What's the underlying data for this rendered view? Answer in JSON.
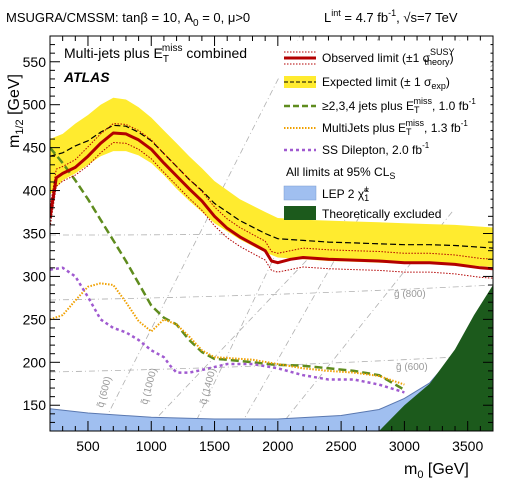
{
  "chart_data": {
    "type": "line",
    "header": {
      "model": "MSUGRA/CMSSM: tanβ = 10, A",
      "model_sub": "0",
      "model_tail": " = 0, μ>0",
      "lumi_main": "L",
      "lumi_sup": "int",
      "lumi_tail": " = 4.7 fb",
      "lumi_unit_sup": "-1",
      "lumi_energy": ", √s=7 TeV"
    },
    "panel_title": {
      "main": "Multi-jets plus E",
      "sub": "T",
      "sup": "miss",
      "tail": " combined"
    },
    "experiment": "ATLAS",
    "xlabel": {
      "main": "m",
      "sub": "0",
      "tail": " [GeV]"
    },
    "ylabel": {
      "main": "m",
      "sub": "1/2",
      "tail": " [GeV]"
    },
    "xlim": [
      200,
      3700
    ],
    "ylim": [
      120,
      580
    ],
    "xticks": [
      500,
      1000,
      1500,
      2000,
      2500,
      3000,
      3500
    ],
    "yticks": [
      150,
      200,
      250,
      300,
      350,
      400,
      450,
      500,
      550
    ],
    "legend_position": "top-right",
    "legend": [
      {
        "label": "Observed limit (±1 σ",
        "sup": "SUSY",
        "sub": "theory",
        "tail": ")"
      },
      {
        "label": "Expected limit (± 1 σ",
        "sub": "exp",
        "tail": ")"
      },
      {
        "label": "≥2,3,4 jets plus E",
        "sub": "T",
        "sup": "miss",
        "tail": ", 1.0 fb",
        "tail_sup": "-1"
      },
      {
        "label": "MultiJets plus E",
        "sub": "T",
        "sup": "miss",
        "tail": ", 1.3 fb",
        "tail_sup": "-1"
      },
      {
        "label": "SS Dilepton, 2.0 fb",
        "sup": "-1"
      },
      {
        "label": "All limits at 95% CL",
        "sub": "S"
      },
      {
        "label": "LEP 2 ",
        "chi": "χ̃",
        "sub": "1",
        "sup": "±"
      },
      {
        "label": "Theoretically excluded"
      }
    ],
    "contour_labels": [
      "g̃ (800)",
      "g̃ (600)",
      "q̃ (600)",
      "q̃ (1000)",
      "q̃ (1400)"
    ],
    "colors": {
      "observed": "#b30000",
      "expected_band": "#ffeb2f",
      "jets_234": "#5f8c1e",
      "multijets": "#f0a000",
      "ss_dilepton": "#a05ad0",
      "lep2": "#a0bff0",
      "theo_excluded": "#1c5a1c",
      "contours": "#b0b0b0"
    },
    "series": [
      {
        "name": "Observed limit",
        "x": [
          200,
          250,
          300,
          400,
          500,
          600,
          700,
          800,
          900,
          1000,
          1100,
          1200,
          1300,
          1400,
          1500,
          1600,
          1700,
          1800,
          1900,
          1950,
          2000,
          2100,
          2200,
          2400,
          2600,
          2800,
          3000,
          3200,
          3400,
          3600,
          3700
        ],
        "y": [
          368,
          415,
          420,
          427,
          440,
          455,
          467,
          466,
          459,
          448,
          432,
          417,
          402,
          388,
          370,
          356,
          346,
          338,
          330,
          318,
          316,
          320,
          322,
          320,
          319,
          318,
          316,
          316,
          314,
          310,
          309
        ]
      },
      {
        "name": "Observed limit +1σ theory",
        "x": [
          200,
          250,
          300,
          400,
          500,
          600,
          700,
          800,
          900,
          1000,
          1100,
          1200,
          1300,
          1400,
          1500,
          1600,
          1700,
          1800,
          1900,
          1950,
          2000,
          2200,
          2400,
          2600,
          2800,
          3000,
          3200,
          3400,
          3600,
          3700
        ],
        "y": [
          380,
          425,
          428,
          436,
          451,
          466,
          478,
          477,
          470,
          459,
          443,
          428,
          413,
          399,
          381,
          367,
          357,
          349,
          341,
          329,
          327,
          333,
          331,
          330,
          329,
          327,
          327,
          325,
          321,
          320
        ]
      },
      {
        "name": "Observed limit -1σ theory",
        "x": [
          200,
          250,
          300,
          400,
          500,
          600,
          700,
          800,
          900,
          1000,
          1100,
          1200,
          1300,
          1400,
          1500,
          1600,
          1700,
          1800,
          1900,
          1950,
          2000,
          2200,
          2400,
          2600,
          2800,
          3000,
          3200,
          3400,
          3600,
          3700
        ],
        "y": [
          357,
          405,
          411,
          418,
          429,
          444,
          456,
          455,
          448,
          437,
          421,
          406,
          391,
          377,
          359,
          345,
          335,
          327,
          319,
          307,
          305,
          311,
          309,
          308,
          307,
          305,
          305,
          303,
          299,
          298
        ]
      },
      {
        "name": "Expected limit",
        "x": [
          200,
          300,
          400,
          500,
          600,
          700,
          800,
          900,
          1000,
          1100,
          1200,
          1300,
          1400,
          1500,
          1700,
          1900,
          2000,
          2200,
          2400,
          2600,
          2800,
          3000,
          3200,
          3400,
          3600,
          3700
        ],
        "y": [
          440,
          444,
          452,
          458,
          468,
          476,
          475,
          468,
          458,
          443,
          428,
          413,
          400,
          385,
          365,
          350,
          344,
          342,
          340,
          339,
          338,
          337,
          337,
          336,
          334,
          333
        ]
      },
      {
        "name": "Expected band upper",
        "x": [
          200,
          300,
          400,
          500,
          600,
          700,
          800,
          900,
          1000,
          1100,
          1200,
          1300,
          1400,
          1500,
          1700,
          1900,
          2000,
          2200,
          2400,
          2600,
          2800,
          3000,
          3200,
          3400,
          3600,
          3700
        ],
        "y": [
          460,
          466,
          478,
          488,
          500,
          508,
          506,
          497,
          485,
          470,
          455,
          440,
          426,
          411,
          390,
          375,
          368,
          366,
          365,
          364,
          363,
          362,
          361,
          360,
          358,
          357
        ]
      },
      {
        "name": "Expected band lower",
        "x": [
          200,
          300,
          400,
          500,
          600,
          700,
          800,
          900,
          1000,
          1100,
          1200,
          1300,
          1400,
          1500,
          1700,
          1900,
          2000,
          2200,
          2400,
          2600,
          2800,
          3000,
          3200,
          3400,
          3600,
          3700
        ],
        "y": [
          395,
          412,
          420,
          430,
          440,
          446,
          446,
          441,
          432,
          418,
          402,
          388,
          375,
          362,
          343,
          328,
          322,
          320,
          318,
          317,
          316,
          315,
          315,
          314,
          312,
          311
        ]
      },
      {
        "name": "≥2,3,4 jets plus ETmiss, 1.0 fb-1",
        "x": [
          200,
          300,
          400,
          500,
          600,
          700,
          800,
          900,
          1000,
          1100,
          1200,
          1300,
          1400,
          1500,
          1600,
          1800,
          2000,
          2200,
          2400,
          2600,
          2800,
          3000
        ],
        "y": [
          450,
          432,
          412,
          390,
          366,
          342,
          318,
          292,
          266,
          252,
          244,
          226,
          212,
          204,
          203,
          200,
          197,
          196,
          193,
          190,
          185,
          168
        ]
      },
      {
        "name": "MultiJets plus ETmiss, 1.3 fb-1",
        "x": [
          200,
          300,
          400,
          500,
          600,
          700,
          800,
          900,
          1000,
          1100,
          1200,
          1300,
          1400,
          1500,
          1600,
          1800,
          2000,
          2200,
          2400,
          2600,
          2800,
          3000
        ],
        "y": [
          250,
          255,
          272,
          288,
          292,
          290,
          270,
          248,
          236,
          250,
          244,
          230,
          214,
          206,
          205,
          203,
          198,
          193,
          190,
          188,
          184,
          174
        ]
      },
      {
        "name": "SS Dilepton, 2.0 fb-1",
        "x": [
          200,
          300,
          400,
          500,
          600,
          700,
          800,
          900,
          1000,
          1100,
          1150,
          1200,
          1300,
          1400,
          1600,
          1800,
          2000,
          2200,
          2400,
          2600,
          2800,
          3000
        ],
        "y": [
          308,
          310,
          300,
          276,
          250,
          240,
          235,
          226,
          214,
          206,
          196,
          188,
          188,
          191,
          198,
          198,
          193,
          185,
          180,
          180,
          174,
          165
        ]
      },
      {
        "name": "LEP 2 chargino",
        "x": [
          200,
          500,
          1000,
          1500,
          2000,
          2500,
          2800,
          3000,
          3200,
          3400,
          3600
        ],
        "y": [
          146,
          141,
          136,
          134,
          134,
          138,
          145,
          158,
          176,
          210,
          260
        ]
      },
      {
        "name": "Theoretically excluded",
        "x": [
          2800,
          3000,
          3200,
          3400,
          3550,
          3700
        ],
        "y": [
          120,
          150,
          175,
          215,
          255,
          290
        ]
      }
    ]
  }
}
